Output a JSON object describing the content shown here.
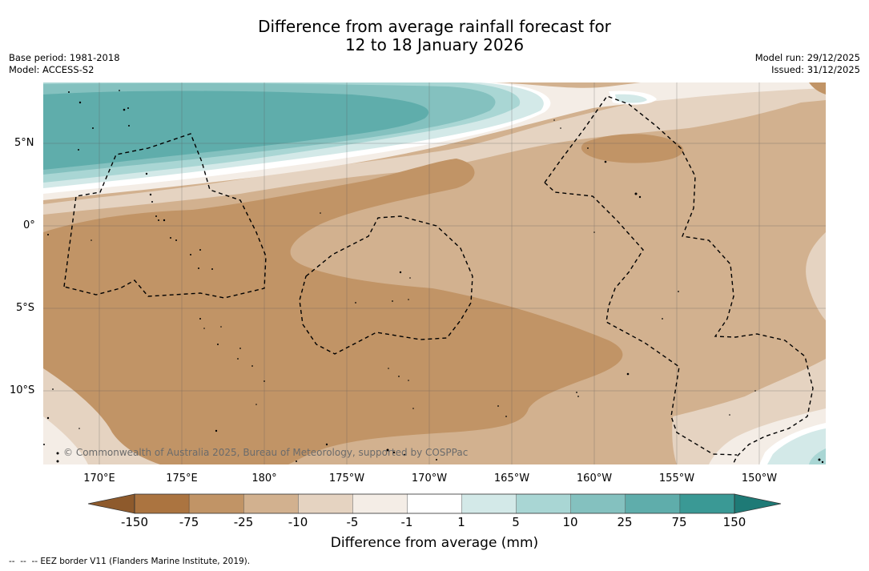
{
  "title": {
    "line1": "Difference from average rainfall forecast for",
    "line2": "12 to 18 January 2026"
  },
  "meta": {
    "base_period": "Base period: 1981-2018",
    "model": "Model: ACCESS-S2",
    "model_run": "Model run: 29/12/2025",
    "issued": "Issued: 31/12/2025"
  },
  "map": {
    "lat_labels": [
      "5°N",
      "0°",
      "5°S",
      "10°S"
    ],
    "lon_labels": [
      "170°E",
      "175°E",
      "180°",
      "175°W",
      "170°W",
      "165°W",
      "160°W",
      "155°W",
      "150°W"
    ],
    "copyright": "© Commonwealth of Australia 2025, Bureau of Meteorology, supported by COSPPac",
    "anomaly_colors": {
      "lt_-150": "#8e5a2c",
      "-150_-75": "#ab7440",
      "-75_-25": "#c19466",
      "-25_-10": "#d2b18f",
      "-10_-5": "#e5d3c1",
      "-5_-1": "#f4ede6",
      "-1_1": "#ffffff",
      "1_5": "#d3e9e8",
      "5_10": "#a9d6d4",
      "10_25": "#84c1bf",
      "25_75": "#5fadab",
      "75_150": "#3a9995",
      "gt_150": "#1e7a76"
    }
  },
  "colorbar": {
    "ticks": [
      "-150",
      "-75",
      "-25",
      "-10",
      "-5",
      "-1",
      "1",
      "5",
      "10",
      "25",
      "75",
      "150"
    ],
    "colors": [
      "#ab7440",
      "#c19466",
      "#d2b18f",
      "#e5d3c1",
      "#f4ede6",
      "#ffffff",
      "#d3e9e8",
      "#a9d6d4",
      "#84c1bf",
      "#5fadab",
      "#3a9995"
    ],
    "low_end_color": "#8e5a2c",
    "high_end_color": "#1e7a76",
    "title": "Difference from average (mm)"
  },
  "footer": {
    "eez_note": "--  --  -- EEZ border V11 (Flanders Marine Institute, 2019)."
  }
}
